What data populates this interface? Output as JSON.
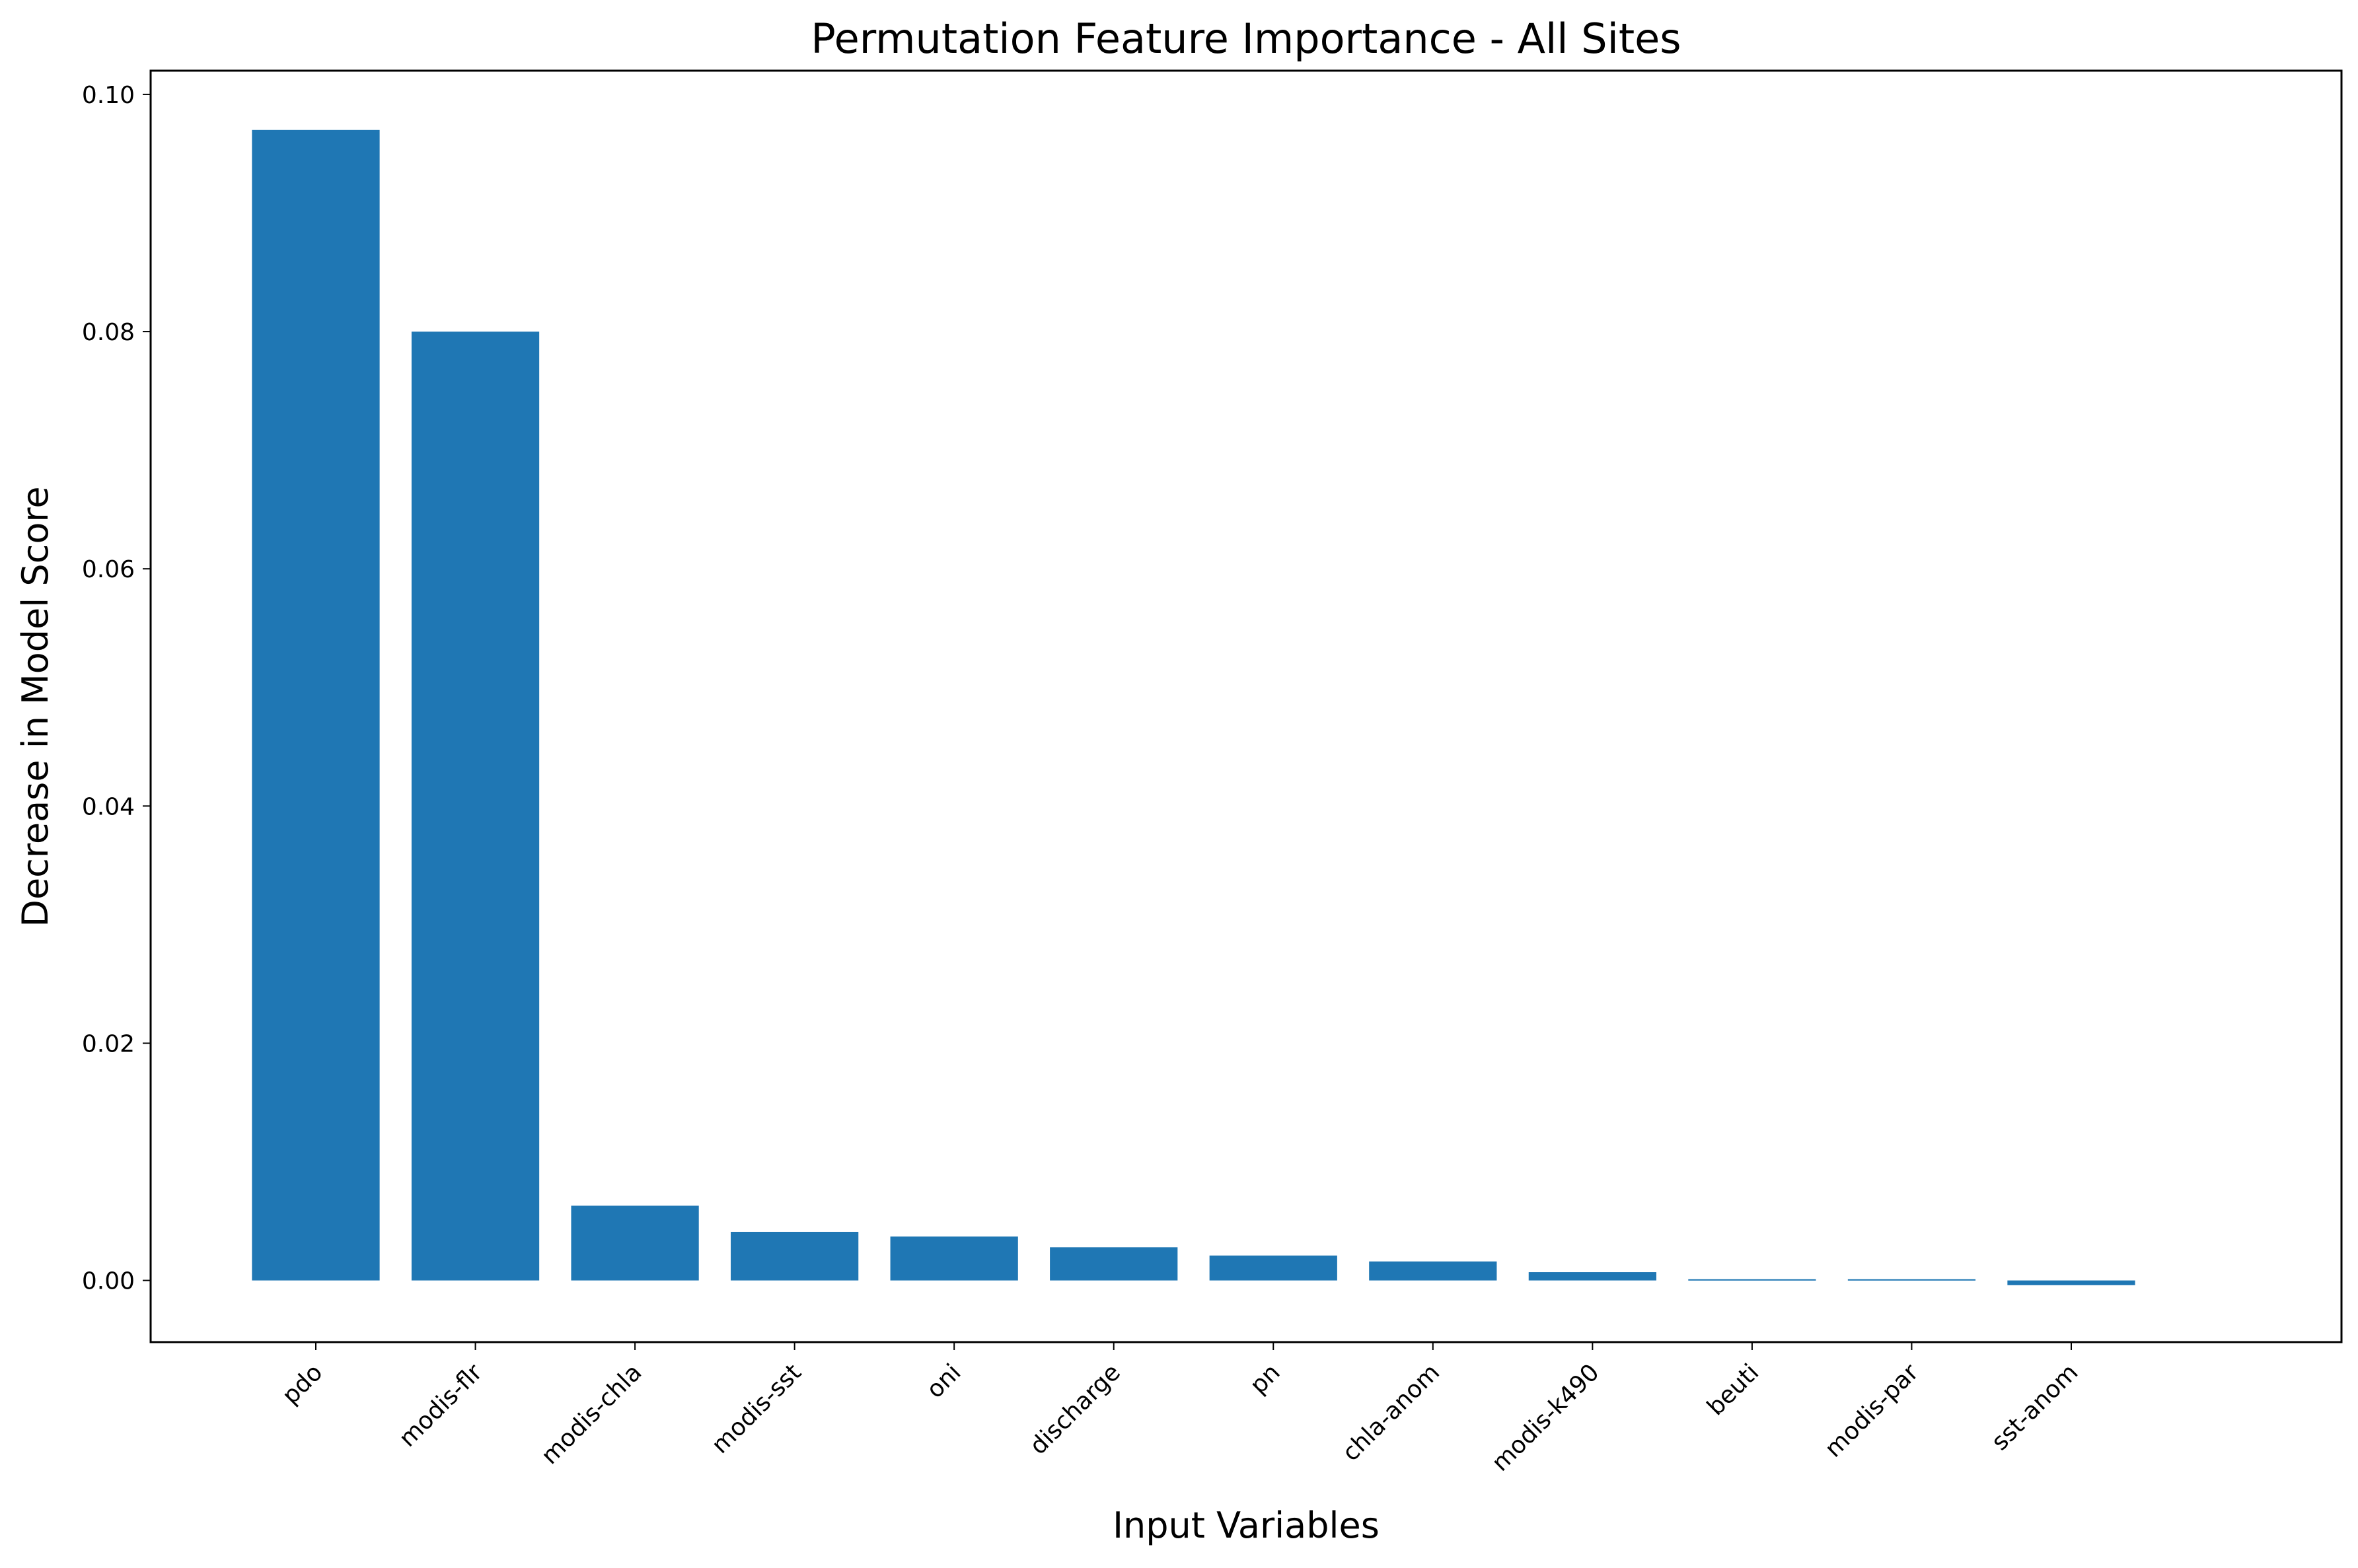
{
  "chart_data": {
    "type": "bar",
    "title": "Permutation Feature Importance - All Sites",
    "xlabel": "Input Variables",
    "ylabel": "Decrease in Model Score",
    "categories": [
      "pdo",
      "modis-flr",
      "modis-chla",
      "modis-sst",
      "oni",
      "discharge",
      "pn",
      "chla-anom",
      "modis-k490",
      "beuti",
      "modis-par",
      "sst-anom"
    ],
    "values": [
      0.097,
      0.08,
      0.0063,
      0.0041,
      0.0037,
      0.0028,
      0.0021,
      0.0016,
      0.0007,
      0.0001,
      0.0001,
      -0.0004
    ],
    "ylim": [
      -0.0052,
      0.102
    ],
    "yticks": [
      0.0,
      0.02,
      0.04,
      0.06,
      0.08,
      0.1
    ],
    "ytick_labels": [
      "0.00",
      "0.02",
      "0.04",
      "0.06",
      "0.08",
      "0.10"
    ],
    "bar_color": "#1f77b4",
    "grid": false,
    "legend": "none"
  }
}
